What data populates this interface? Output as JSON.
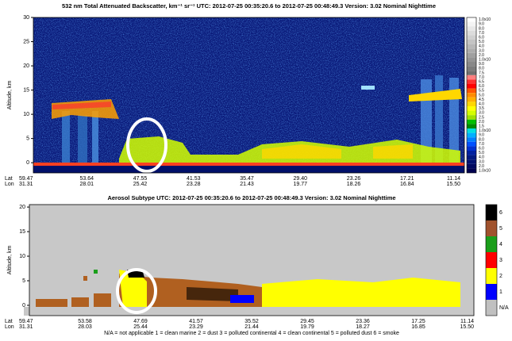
{
  "panels": [
    {
      "title": "532 nm Total Attenuated Backscatter, km⁻¹ sr⁻¹   UTC:  2012-07-25  00:35:20.6   to   2012-07-25  00:48:49.3     Version: 3.02  Nominal Nighttime",
      "ylabel": "Altitude, km",
      "ylim": [
        -2.1,
        30
      ],
      "yticks": [
        0,
        5,
        10,
        15,
        20,
        25,
        30
      ],
      "lat_label": "Lat",
      "lon_label": "Lon",
      "lat": [
        "59.47",
        "53.64",
        "47.55",
        "41.53",
        "35.47",
        "29.40",
        "23.26",
        "17.21",
        "11.14"
      ],
      "lon": [
        "31.31",
        "28.01",
        "25.42",
        "23.28",
        "21.43",
        "19.77",
        "18.26",
        "16.84",
        "15.50"
      ],
      "colorbar": {
        "labels": [
          "1.0x10",
          "9.0",
          "8.0",
          "7.0",
          "6.0",
          "5.0",
          "4.0",
          "3.0",
          "2.0",
          "1.0x10",
          "9.0",
          "8.0",
          "7.5",
          "7.0",
          "6.5",
          "6.0",
          "5.5",
          "5.0",
          "4.5",
          "4.0",
          "3.5",
          "3.0",
          "2.5",
          "2.0",
          "1.5",
          "1.0x10",
          "9.0",
          "8.0",
          "7.0",
          "6.0",
          "5.0",
          "4.0",
          "3.0",
          "2.0",
          "1.0x10"
        ],
        "colors": [
          "#ffffff",
          "#f4f4f4",
          "#e8e8e8",
          "#dcdcdc",
          "#d0d0d0",
          "#c4c4c4",
          "#b8b8b8",
          "#acacac",
          "#a0a0a0",
          "#949494",
          "#888888",
          "#7c7c7c",
          "#707070",
          "#ff7f7f",
          "#ff3030",
          "#ff0000",
          "#ff5500",
          "#ff8c00",
          "#ffb000",
          "#ffd700",
          "#ffff00",
          "#d4ff00",
          "#a0e000",
          "#00c000",
          "#008c00",
          "#00e0e0",
          "#00b0ff",
          "#0080ff",
          "#0050ff",
          "#0030d0",
          "#0020a0",
          "#001880",
          "#001070",
          "#000860",
          "#000050"
        ]
      }
    },
    {
      "title": "Aerosol Subtype    UTC:  2012-07-25    00:35:20.6   to   2012-07-25    00:48:49.3     Version: 3.02  Nominal Nighttime",
      "ylabel": "Altitude, km",
      "ylim": [
        -2.1,
        20.5
      ],
      "yticks": [
        0,
        5,
        10,
        15,
        20
      ],
      "lat_label": "Lat",
      "lon_label": "Lon",
      "lat": [
        "59.47",
        "53.58",
        "47.69",
        "41.57",
        "35.52",
        "29.45",
        "23.36",
        "17.25",
        "11.14"
      ],
      "lon": [
        "31.31",
        "28.03",
        "25.44",
        "23.29",
        "21.44",
        "19.79",
        "18.27",
        "16.85",
        "15.50"
      ],
      "colorbar": {
        "labels": [
          "6",
          "5",
          "4",
          "3",
          "2",
          "1",
          "N/A"
        ],
        "colors": [
          "#000000",
          "#a0522d",
          "#1a9e1a",
          "#ff0000",
          "#ffff00",
          "#0000ff",
          "#c0c0c0"
        ]
      },
      "legend": "N/A = not applicable     1 = clean marine     2 = dust     3 = polluted continental     4 = clean continental     5 = polluted dust     6 = smoke"
    }
  ]
}
